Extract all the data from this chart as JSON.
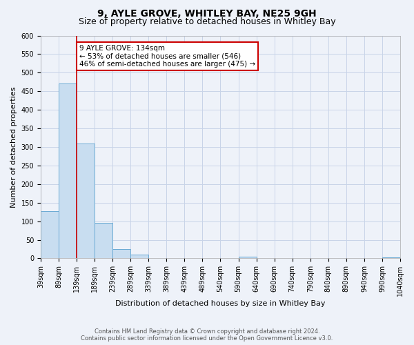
{
  "title": "9, AYLE GROVE, WHITLEY BAY, NE25 9GH",
  "subtitle": "Size of property relative to detached houses in Whitley Bay",
  "xlabel": "Distribution of detached houses by size in Whitley Bay",
  "ylabel": "Number of detached properties",
  "bin_labels": [
    "39sqm",
    "89sqm",
    "139sqm",
    "189sqm",
    "239sqm",
    "289sqm",
    "339sqm",
    "389sqm",
    "439sqm",
    "489sqm",
    "540sqm",
    "590sqm",
    "640sqm",
    "690sqm",
    "740sqm",
    "790sqm",
    "840sqm",
    "890sqm",
    "940sqm",
    "990sqm",
    "1040sqm"
  ],
  "bar_heights": [
    128,
    470,
    310,
    96,
    25,
    10,
    0,
    0,
    0,
    0,
    0,
    5,
    0,
    0,
    0,
    0,
    0,
    0,
    0,
    3
  ],
  "bar_color": "#c8ddf0",
  "bar_edge_color": "#6aaad4",
  "grid_color": "#c8d4e8",
  "background_color": "#eef2f9",
  "property_size_idx": 2,
  "vline_color": "#cc0000",
  "annotation_text": "9 AYLE GROVE: 134sqm\n← 53% of detached houses are smaller (546)\n46% of semi-detached houses are larger (475) →",
  "annotation_box_color": "#ffffff",
  "annotation_box_edge_color": "#cc0000",
  "ylim": [
    0,
    600
  ],
  "yticks": [
    0,
    50,
    100,
    150,
    200,
    250,
    300,
    350,
    400,
    450,
    500,
    550,
    600
  ],
  "footer_text": "Contains HM Land Registry data © Crown copyright and database right 2024.\nContains public sector information licensed under the Open Government Licence v3.0.",
  "title_fontsize": 10,
  "subtitle_fontsize": 9,
  "axis_label_fontsize": 8,
  "tick_fontsize": 7,
  "annotation_fontsize": 7.5
}
